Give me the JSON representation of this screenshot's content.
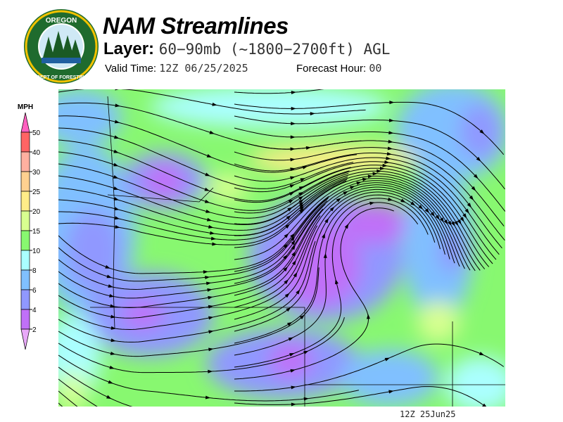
{
  "logo": {
    "top_text": "OREGON",
    "bottom_text": "DEPARTMENT OF FORESTRY",
    "icon": "oregon-forestry-seal"
  },
  "header": {
    "title": "NAM Streamlines",
    "layer_label": "Layer:",
    "layer_value": "60−90mb (~1800−2700ft) AGL",
    "valid_label": "Valid Time:",
    "valid_value": "12Z 06/25/2025",
    "forecast_label": "Forecast Hour:",
    "forecast_value": "00"
  },
  "legend": {
    "unit": "MPH",
    "ticks": [
      "50",
      "40",
      "30",
      "25",
      "20",
      "15",
      "10",
      "8",
      "6",
      "4",
      "2"
    ],
    "colors": {
      "above_50": "#ff60c0",
      "40-50": "#ff6464",
      "30-40": "#ffb0a0",
      "25-30": "#ffd090",
      "20-25": "#ffec88",
      "15-20": "#d8ff90",
      "10-15": "#88f870",
      "8-10": "#aaffff",
      "6-8": "#80c0ff",
      "4-6": "#9098ff",
      "2-4": "#c070f8",
      "below_2": "#e8a8f8"
    }
  },
  "map": {
    "type": "wind-speed streamlines",
    "region": "Pacific Northwest"
  },
  "footer": {
    "timestamp": "12Z 25Jun25"
  }
}
